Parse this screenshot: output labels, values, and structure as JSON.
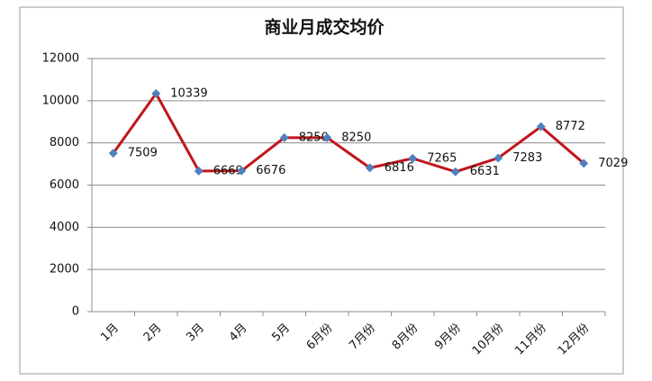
{
  "chart_data": {
    "type": "line",
    "title": "商业月成交均价",
    "categories": [
      "1月",
      "2月",
      "3月",
      "4月",
      "5月",
      "6月份",
      "7月份",
      "8月份",
      "9月份",
      "10月份",
      "11月份",
      "12月份"
    ],
    "values": [
      7509,
      10339,
      6669,
      6676,
      8250,
      8250,
      6816,
      7265,
      6631,
      7283,
      8772,
      7029
    ],
    "color": "#c0161b",
    "marker_color": "#4f81bd",
    "ylim": [
      0,
      12000
    ],
    "yticks": [
      0,
      2000,
      4000,
      6000,
      8000,
      10000,
      12000
    ],
    "grid": true
  }
}
